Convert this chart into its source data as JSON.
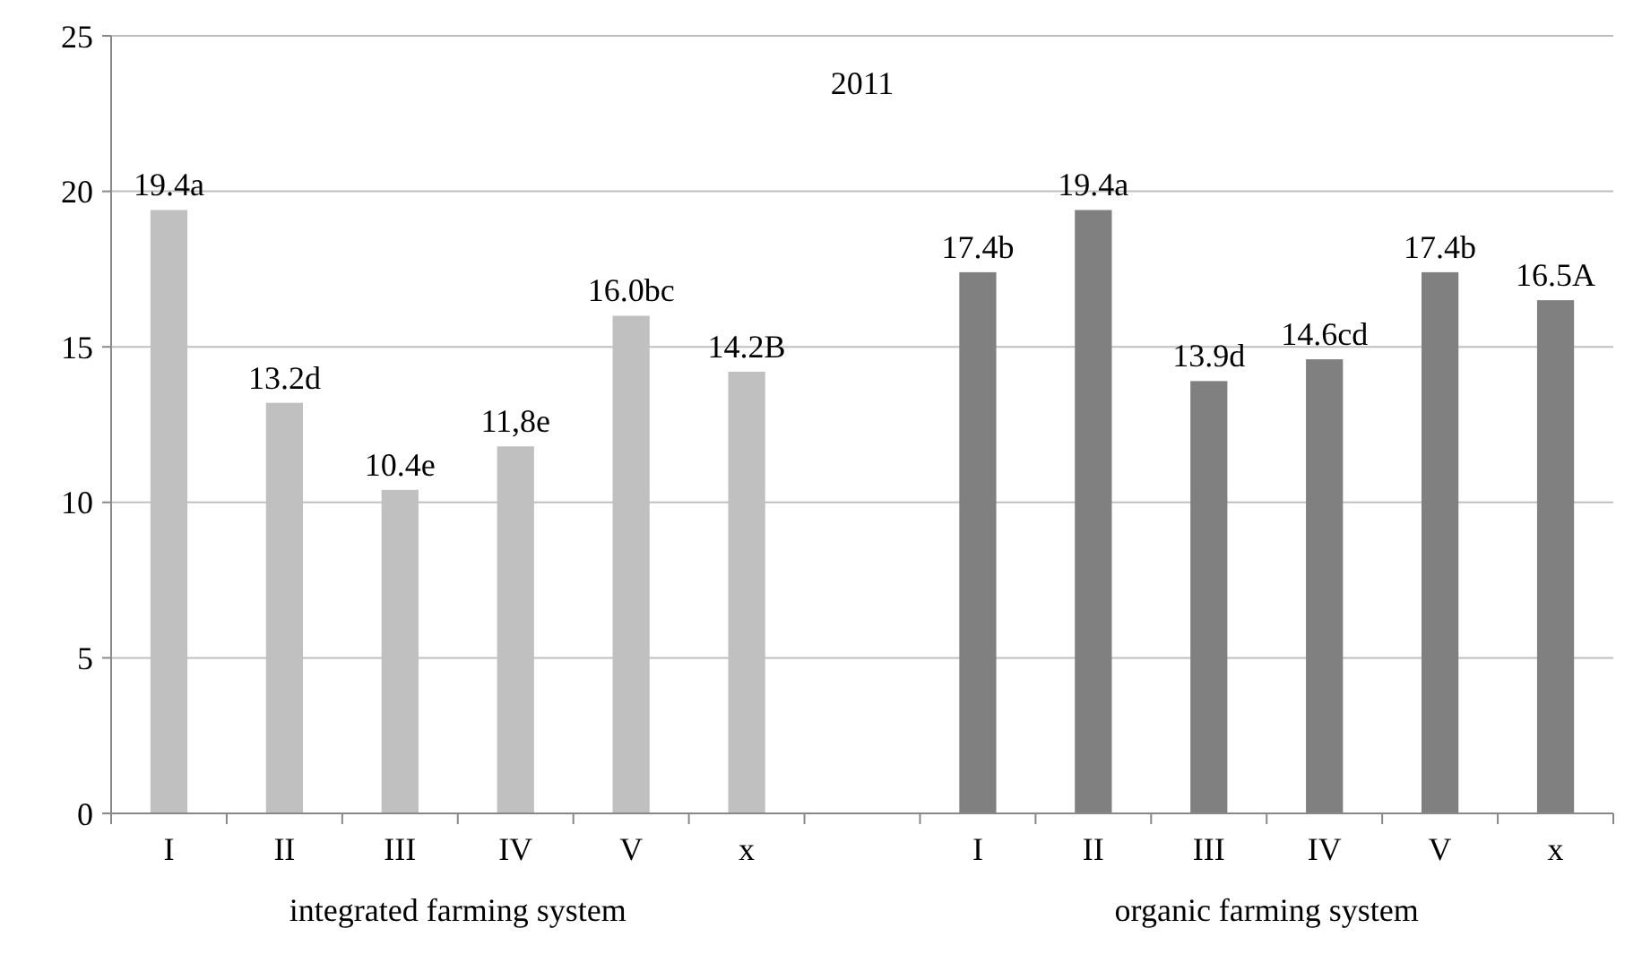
{
  "chart_data": {
    "type": "bar",
    "title": "2011",
    "categories": [
      "I",
      "II",
      "III",
      "IV",
      "V",
      "x",
      null,
      "I",
      "II",
      "III",
      "IV",
      "V",
      "x"
    ],
    "values": [
      19.4,
      13.2,
      10.4,
      11.8,
      16.0,
      14.2,
      null,
      17.4,
      19.4,
      13.9,
      14.6,
      17.4,
      16.5
    ],
    "value_labels": [
      "19.4a",
      "13.2d",
      "10.4e",
      "11,8e",
      "16.0bc",
      "14.2B",
      null,
      "17.4b",
      "19.4a",
      "13.9d",
      "14.6cd",
      "17.4b",
      "16.5A"
    ],
    "colors": [
      "#c0c0c0",
      "#c0c0c0",
      "#c0c0c0",
      "#c0c0c0",
      "#c0c0c0",
      "#c0c0c0",
      null,
      "#808080",
      "#808080",
      "#808080",
      "#808080",
      "#808080",
      "#808080"
    ],
    "ylim": [
      0,
      25
    ],
    "yticks": [
      0,
      5,
      10,
      15,
      20,
      25
    ],
    "grid": "y",
    "annotations": [
      "integrated farming system",
      "organic farming system"
    ]
  }
}
